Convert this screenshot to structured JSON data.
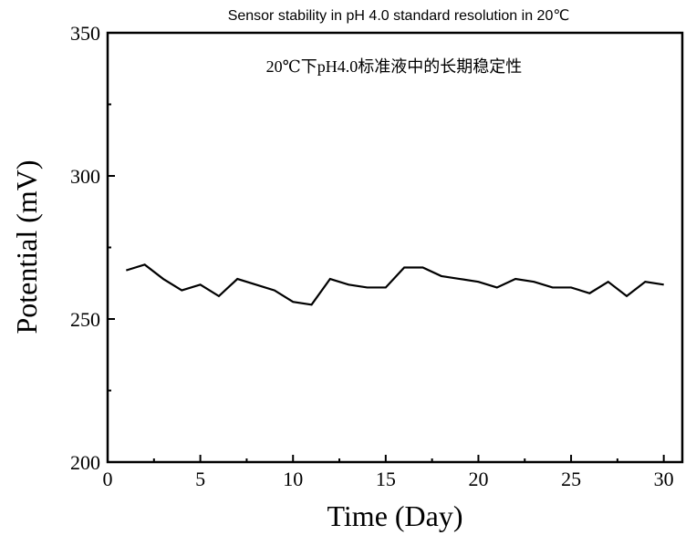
{
  "chart_data": {
    "type": "line",
    "title": "Sensor stability in pH 4.0 standard resolution in 20℃",
    "annotation": "20℃下pH4.0标准液中的长期稳定性",
    "xlabel": "Time (Day)",
    "ylabel": "Potential (mV)",
    "xlim": [
      0,
      31
    ],
    "ylim": [
      200,
      350
    ],
    "xticks": [
      0,
      5,
      10,
      15,
      20,
      25,
      30
    ],
    "yticks": [
      200,
      250,
      300,
      350
    ],
    "grid": false,
    "line_color": "#000000",
    "x": [
      1,
      2,
      3,
      4,
      5,
      6,
      7,
      8,
      9,
      10,
      11,
      12,
      13,
      14,
      15,
      16,
      17,
      18,
      19,
      20,
      21,
      22,
      23,
      24,
      25,
      26,
      27,
      28,
      29,
      30
    ],
    "y": [
      267,
      269,
      264,
      260,
      262,
      258,
      264,
      262,
      260,
      256,
      255,
      264,
      262,
      261,
      261,
      268,
      268,
      265,
      264,
      263,
      261,
      264,
      263,
      261,
      261,
      259,
      263,
      258,
      263,
      262
    ]
  }
}
